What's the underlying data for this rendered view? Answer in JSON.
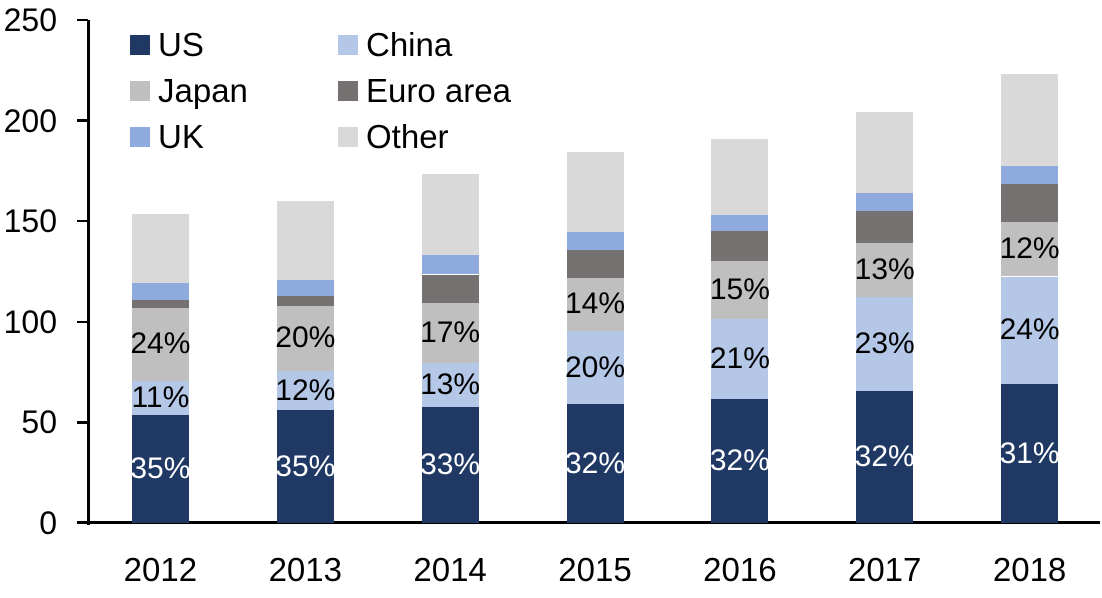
{
  "chart_data": {
    "type": "bar",
    "stacked": true,
    "title": "",
    "xlabel": "",
    "ylabel": "",
    "categories": [
      "2012",
      "2013",
      "2014",
      "2015",
      "2016",
      "2017",
      "2018"
    ],
    "series": [
      {
        "name": "US",
        "color": "#1F3864",
        "values": [
          53.5,
          56,
          57.5,
          59,
          61.5,
          65.5,
          69
        ],
        "labels": [
          "35%",
          "35%",
          "33%",
          "32%",
          "32%",
          "32%",
          "31%"
        ],
        "label_color": "#FFFFFF"
      },
      {
        "name": "China",
        "color": "#B4C7E7",
        "values": [
          17,
          19.5,
          22,
          36.5,
          40,
          47,
          53.5
        ],
        "labels": [
          "11%",
          "12%",
          "13%",
          "20%",
          "21%",
          "23%",
          "24%"
        ],
        "label_color": "#000000"
      },
      {
        "name": "Japan",
        "color": "#BFBFBF",
        "values": [
          36.5,
          32.5,
          30,
          26.5,
          28.5,
          26.5,
          27
        ],
        "labels": [
          "24%",
          "20%",
          "17%",
          "14%",
          "15%",
          "13%",
          "12%"
        ],
        "label_color": "#000000"
      },
      {
        "name": "Euro area",
        "color": "#767171",
        "values": [
          4,
          5,
          14,
          13.5,
          15,
          16,
          19
        ],
        "labels": null,
        "label_color": null
      },
      {
        "name": "UK",
        "color": "#8FAADC",
        "values": [
          8.5,
          8,
          9.5,
          9,
          8,
          9,
          9
        ],
        "labels": null,
        "label_color": null
      },
      {
        "name": "Other",
        "color": "#D9D9D9",
        "values": [
          34,
          39,
          40.5,
          40,
          38,
          40.5,
          45.5
        ],
        "labels": null,
        "label_color": null
      }
    ],
    "totals": [
      153.5,
      160,
      173.5,
      184.5,
      191,
      204.5,
      223
    ],
    "ylim": [
      0,
      250
    ],
    "ytick_step": 50,
    "yticks": [
      "0",
      "50",
      "100",
      "150",
      "200",
      "250"
    ],
    "grid": false,
    "legend_position": "top-left",
    "legend_order": [
      "US",
      "China",
      "Japan",
      "Euro area",
      "UK",
      "Other"
    ],
    "axis_color": "#000000",
    "text_color": "#000000",
    "background_color": "#FFFFFF"
  }
}
